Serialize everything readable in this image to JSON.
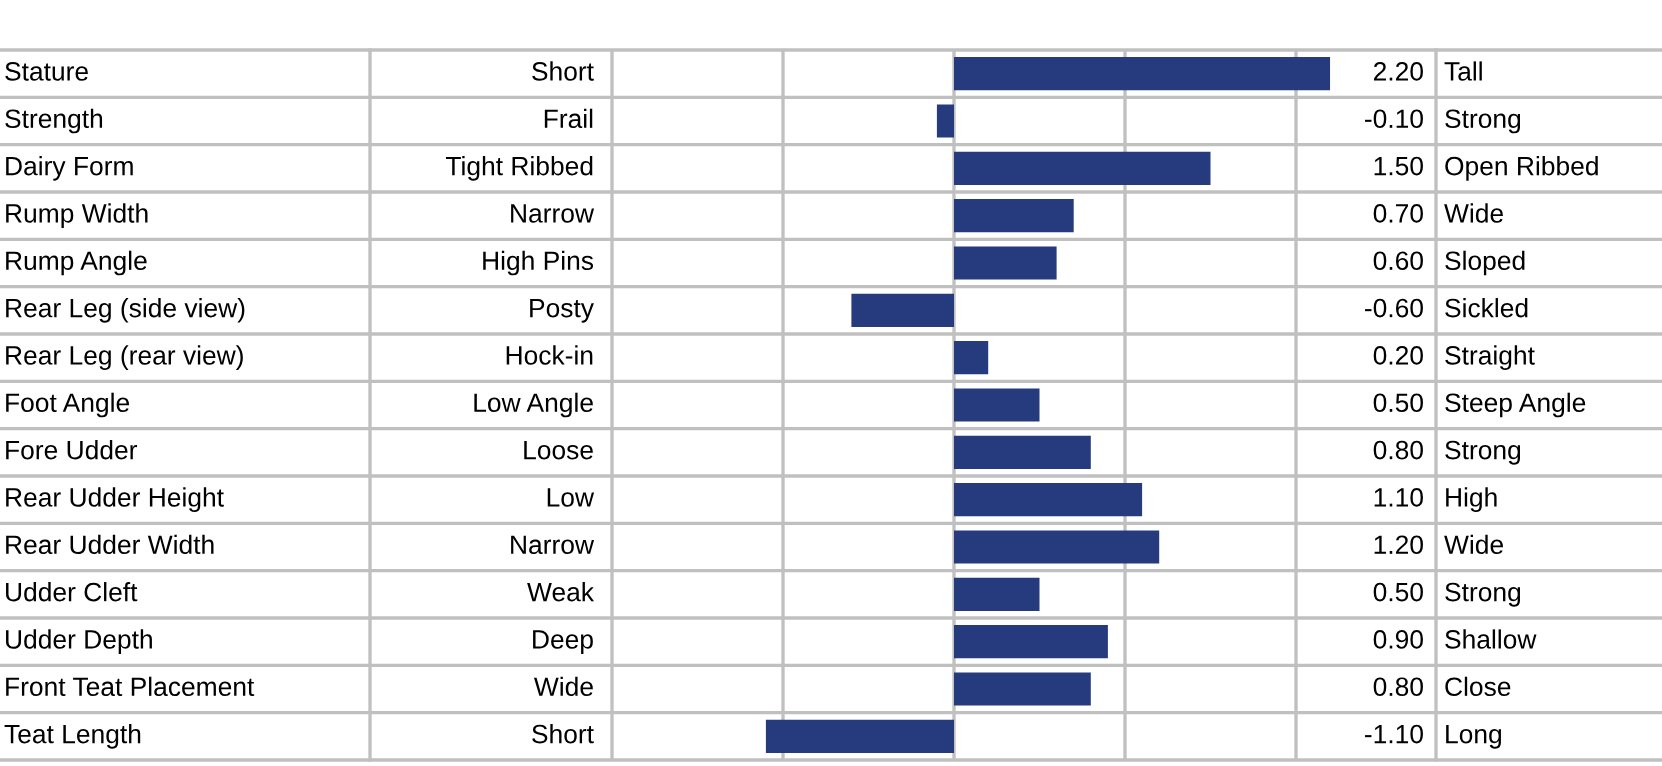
{
  "chart_data": {
    "type": "bar",
    "orientation": "horizontal",
    "categories": [
      "Stature",
      "Strength",
      "Dairy Form",
      "Rump Width",
      "Rump Angle",
      "Rear Leg (side view)",
      "Rear Leg (rear view)",
      "Foot Angle",
      "Fore Udder",
      "Rear Udder Height",
      "Rear Udder Width",
      "Udder Cleft",
      "Udder Depth",
      "Front Teat Placement",
      "Teat Length"
    ],
    "values": [
      2.2,
      -0.1,
      1.5,
      0.7,
      0.6,
      -0.6,
      0.2,
      0.5,
      0.8,
      1.1,
      1.2,
      0.5,
      0.9,
      0.8,
      -1.1
    ],
    "value_labels": [
      "2.20",
      "-0.10",
      "1.50",
      "0.70",
      "0.60",
      "-0.60",
      "0.20",
      "0.50",
      "0.80",
      "1.10",
      "1.20",
      "0.50",
      "0.90",
      "0.80",
      "-1.10"
    ],
    "color": "#263a7e",
    "annotations": [
      "Short",
      "Tall",
      "Frail",
      "Strong",
      "Tight Ribbed",
      "Open Ribbed",
      "Narrow",
      "Wide",
      "High Pins",
      "Sloped",
      "Posty",
      "Sickled",
      "Hock-in",
      "Straight",
      "Low Angle",
      "Steep Angle",
      "Loose",
      "Strong",
      "Low",
      "High",
      "Narrow",
      "Wide",
      "Weak",
      "Strong",
      "Deep",
      "Shallow",
      "Wide",
      "Close",
      "Short",
      "Long"
    ],
    "grid": "x",
    "tick_labels": false,
    "legend": false
  }
}
